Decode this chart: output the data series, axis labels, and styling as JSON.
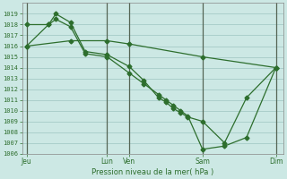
{
  "background_color": "#cce8e4",
  "grid_color": "#aacfcb",
  "line_color": "#2d6e2d",
  "ylabel": "Pression niveau de la mer( hPa )",
  "ylim": [
    1006,
    1020
  ],
  "yticks": [
    1006,
    1007,
    1008,
    1009,
    1010,
    1011,
    1012,
    1013,
    1014,
    1015,
    1016,
    1017,
    1018,
    1019
  ],
  "xtick_labels": [
    "Jeu",
    "Lun",
    "Ven",
    "Sam",
    "Dim"
  ],
  "xtick_positions": [
    0,
    5.5,
    7,
    12,
    17
  ],
  "xlim": [
    -0.3,
    17.5
  ],
  "line1_x": [
    0,
    1.5,
    2,
    3,
    4,
    5.5,
    7,
    8,
    9,
    9.5,
    10,
    10.5,
    11,
    12,
    13.5,
    15,
    17
  ],
  "line1_y": [
    1018.0,
    1018.0,
    1019.0,
    1018.2,
    1015.5,
    1015.2,
    1014.1,
    1012.8,
    1011.2,
    1010.8,
    1010.2,
    1009.8,
    1009.4,
    1009.0,
    1007.0,
    1011.2,
    1014.0
  ],
  "line2_x": [
    0,
    1.5,
    2,
    3,
    4,
    5.5,
    7,
    8,
    9,
    9.5,
    10,
    10.5,
    11,
    12,
    13.5,
    15,
    17
  ],
  "line2_y": [
    1016.0,
    1018.0,
    1018.5,
    1017.8,
    1015.3,
    1015.0,
    1013.5,
    1012.5,
    1011.5,
    1011.0,
    1010.5,
    1010.0,
    1009.5,
    1006.4,
    1006.7,
    1007.5,
    1014.0
  ],
  "line3_x": [
    0,
    3,
    5.5,
    7,
    12,
    17
  ],
  "line3_y": [
    1016.0,
    1016.5,
    1016.5,
    1016.2,
    1015.0,
    1014.0
  ]
}
